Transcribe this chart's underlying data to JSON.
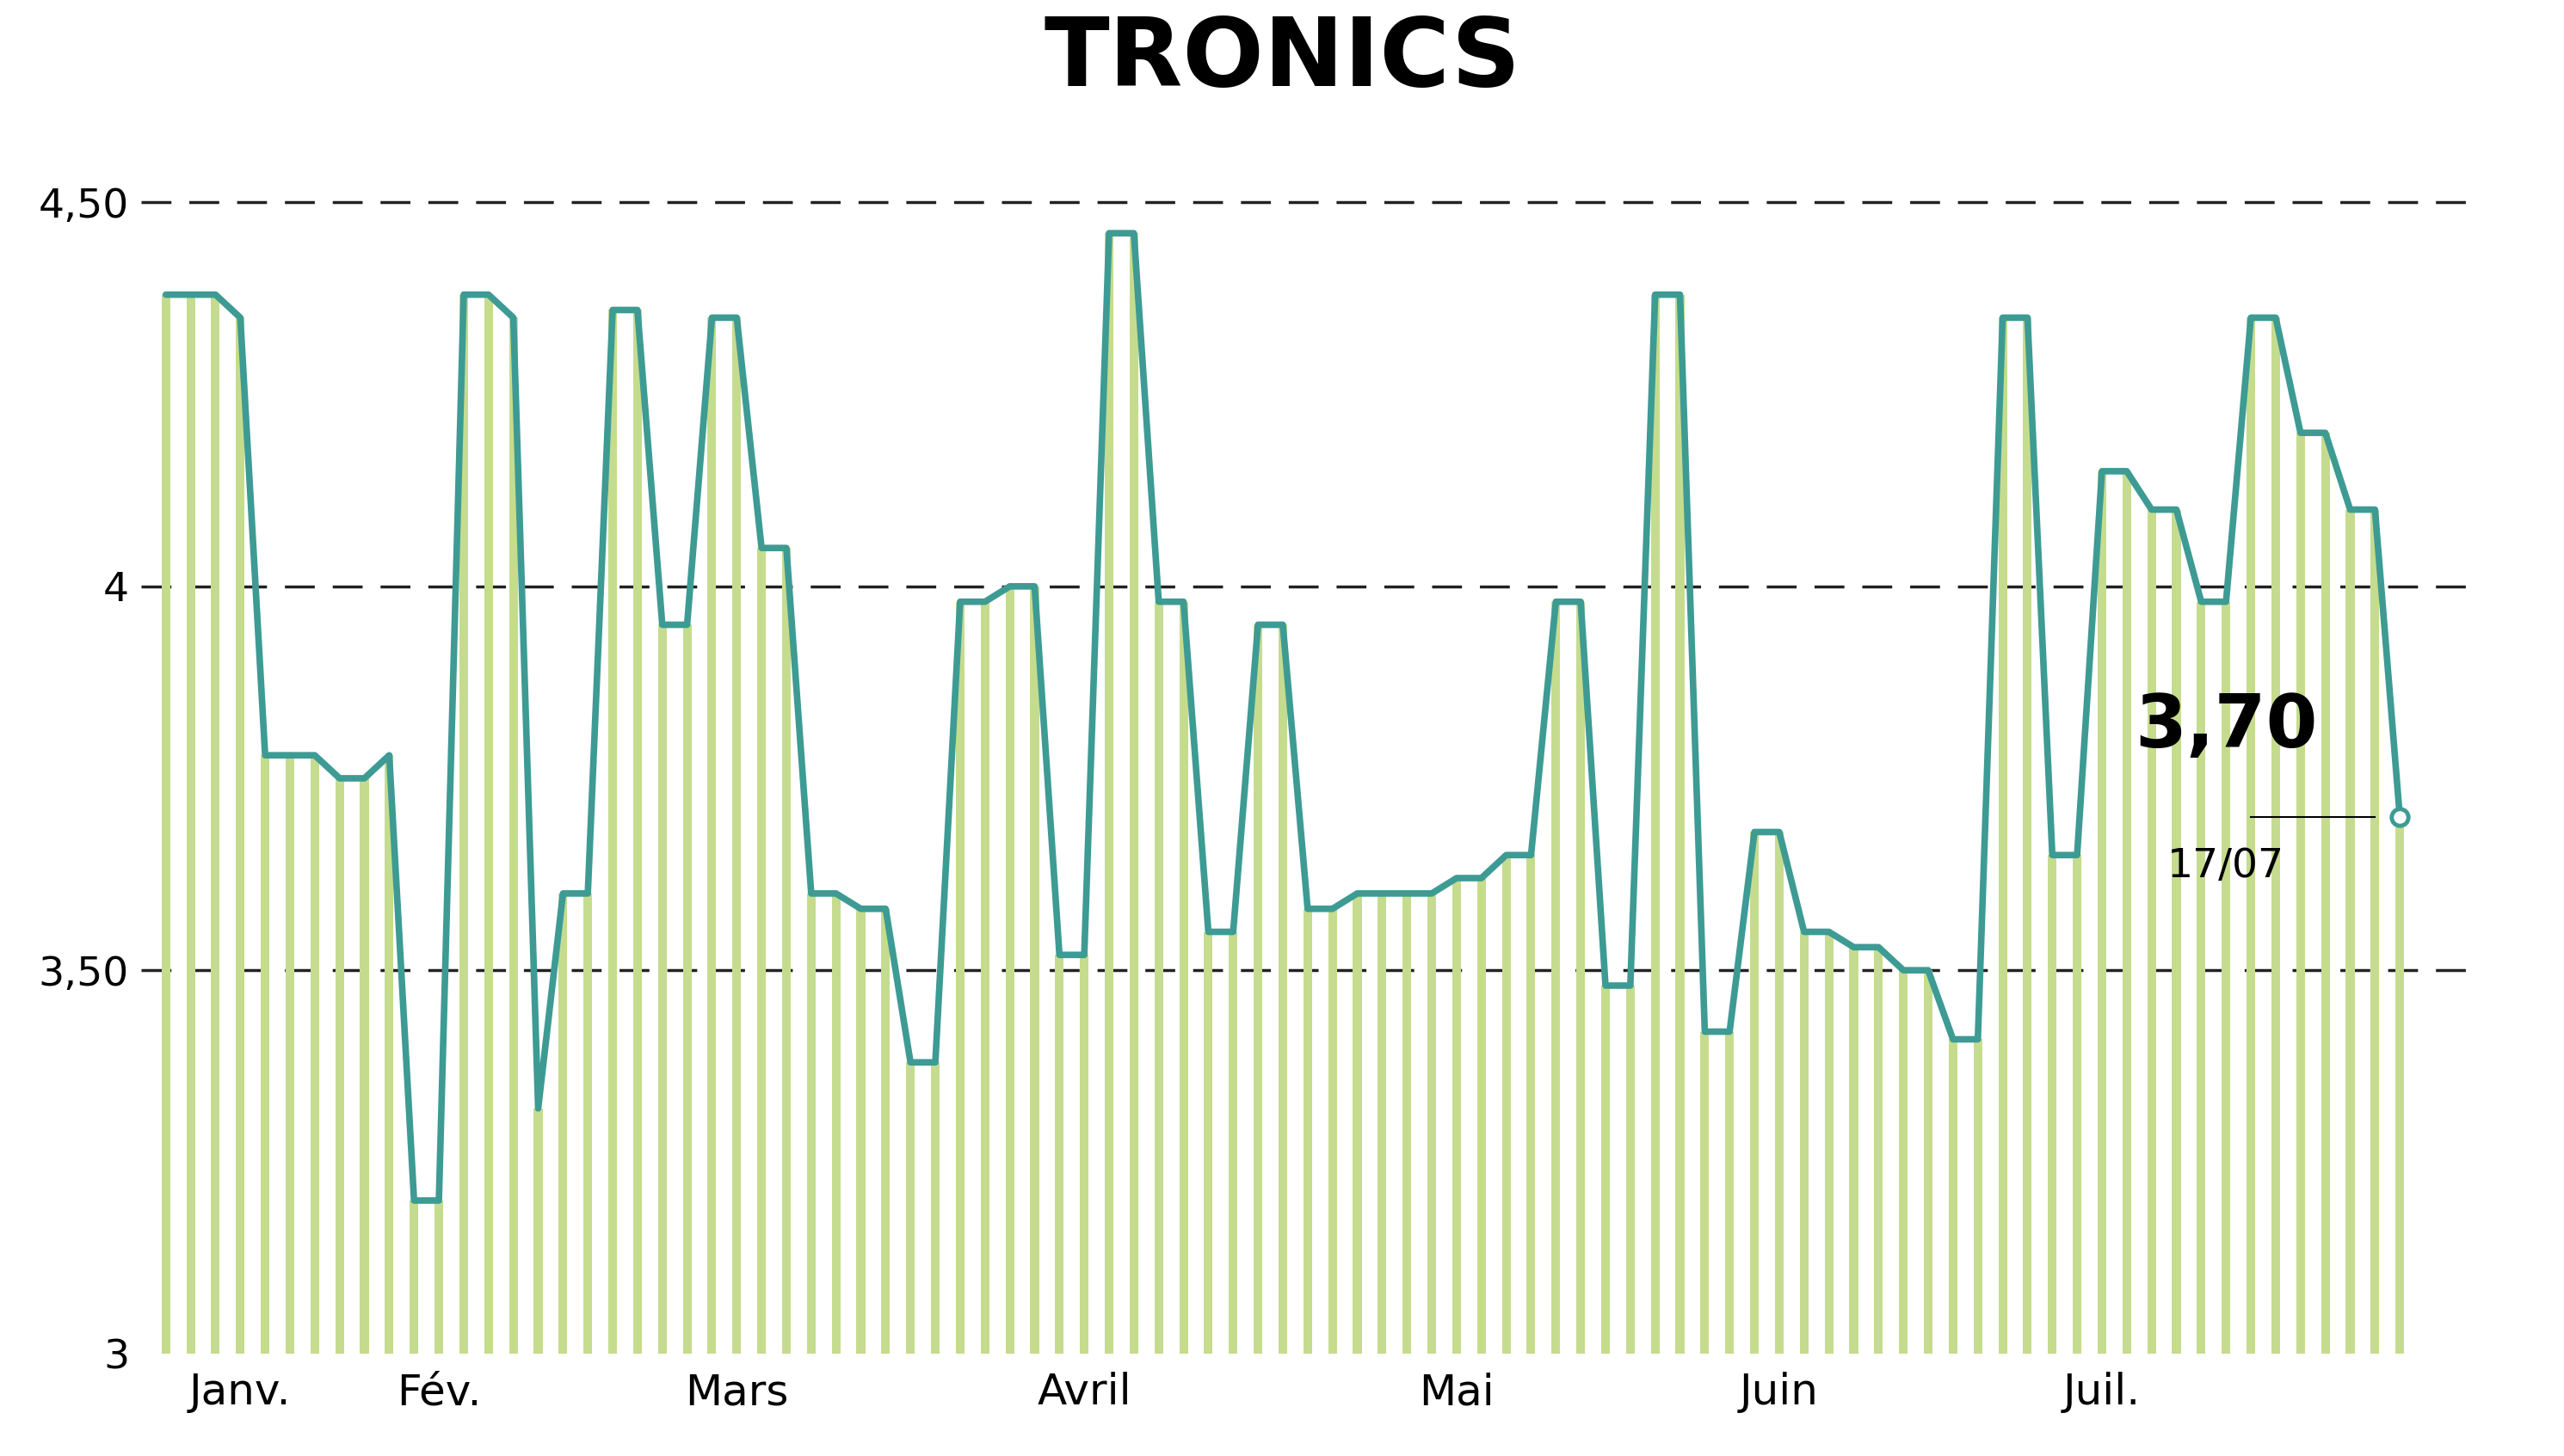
{
  "title": "TRONICS",
  "title_bg_color": "#c5dc8e",
  "background_color": "#ffffff",
  "line_color": "#3d9b94",
  "bar_color": "#c5dc8e",
  "y_min": 3.0,
  "y_max": 4.65,
  "yticks": [
    3.0,
    3.5,
    4.0,
    4.5
  ],
  "ytick_labels": [
    "3",
    "3,50",
    "4",
    "4,50"
  ],
  "grid_color": "#222222",
  "last_price": "3,70",
  "last_date": "17/07",
  "last_price_val": 3.7,
  "xlabel_months": [
    "Janv.",
    "Fév.",
    "Mars",
    "Avril",
    "Mai",
    "Juin",
    "Juil."
  ],
  "prices": [
    4.38,
    4.38,
    4.38,
    4.35,
    3.78,
    3.78,
    3.78,
    3.75,
    3.75,
    3.78,
    3.2,
    3.2,
    4.38,
    4.38,
    4.35,
    3.32,
    3.6,
    3.6,
    4.36,
    4.36,
    3.95,
    3.95,
    4.35,
    4.35,
    4.05,
    4.05,
    3.6,
    3.6,
    3.58,
    3.58,
    3.38,
    3.38,
    3.98,
    3.98,
    4.0,
    4.0,
    3.52,
    3.52,
    4.46,
    4.46,
    3.98,
    3.98,
    3.55,
    3.55,
    3.95,
    3.95,
    3.58,
    3.58,
    3.6,
    3.6,
    3.6,
    3.6,
    3.62,
    3.62,
    3.65,
    3.65,
    3.98,
    3.98,
    3.48,
    3.48,
    4.38,
    4.38,
    3.42,
    3.42,
    3.68,
    3.68,
    3.55,
    3.55,
    3.53,
    3.53,
    3.5,
    3.5,
    3.41,
    3.41,
    4.35,
    4.35,
    3.65,
    3.65,
    4.15,
    4.15,
    4.1,
    4.1,
    3.98,
    3.98,
    4.35,
    4.35,
    4.2,
    4.2,
    4.1,
    4.1,
    3.7
  ],
  "month_x_positions": [
    3,
    11,
    23,
    37,
    52,
    65,
    78
  ],
  "n_total": 90
}
